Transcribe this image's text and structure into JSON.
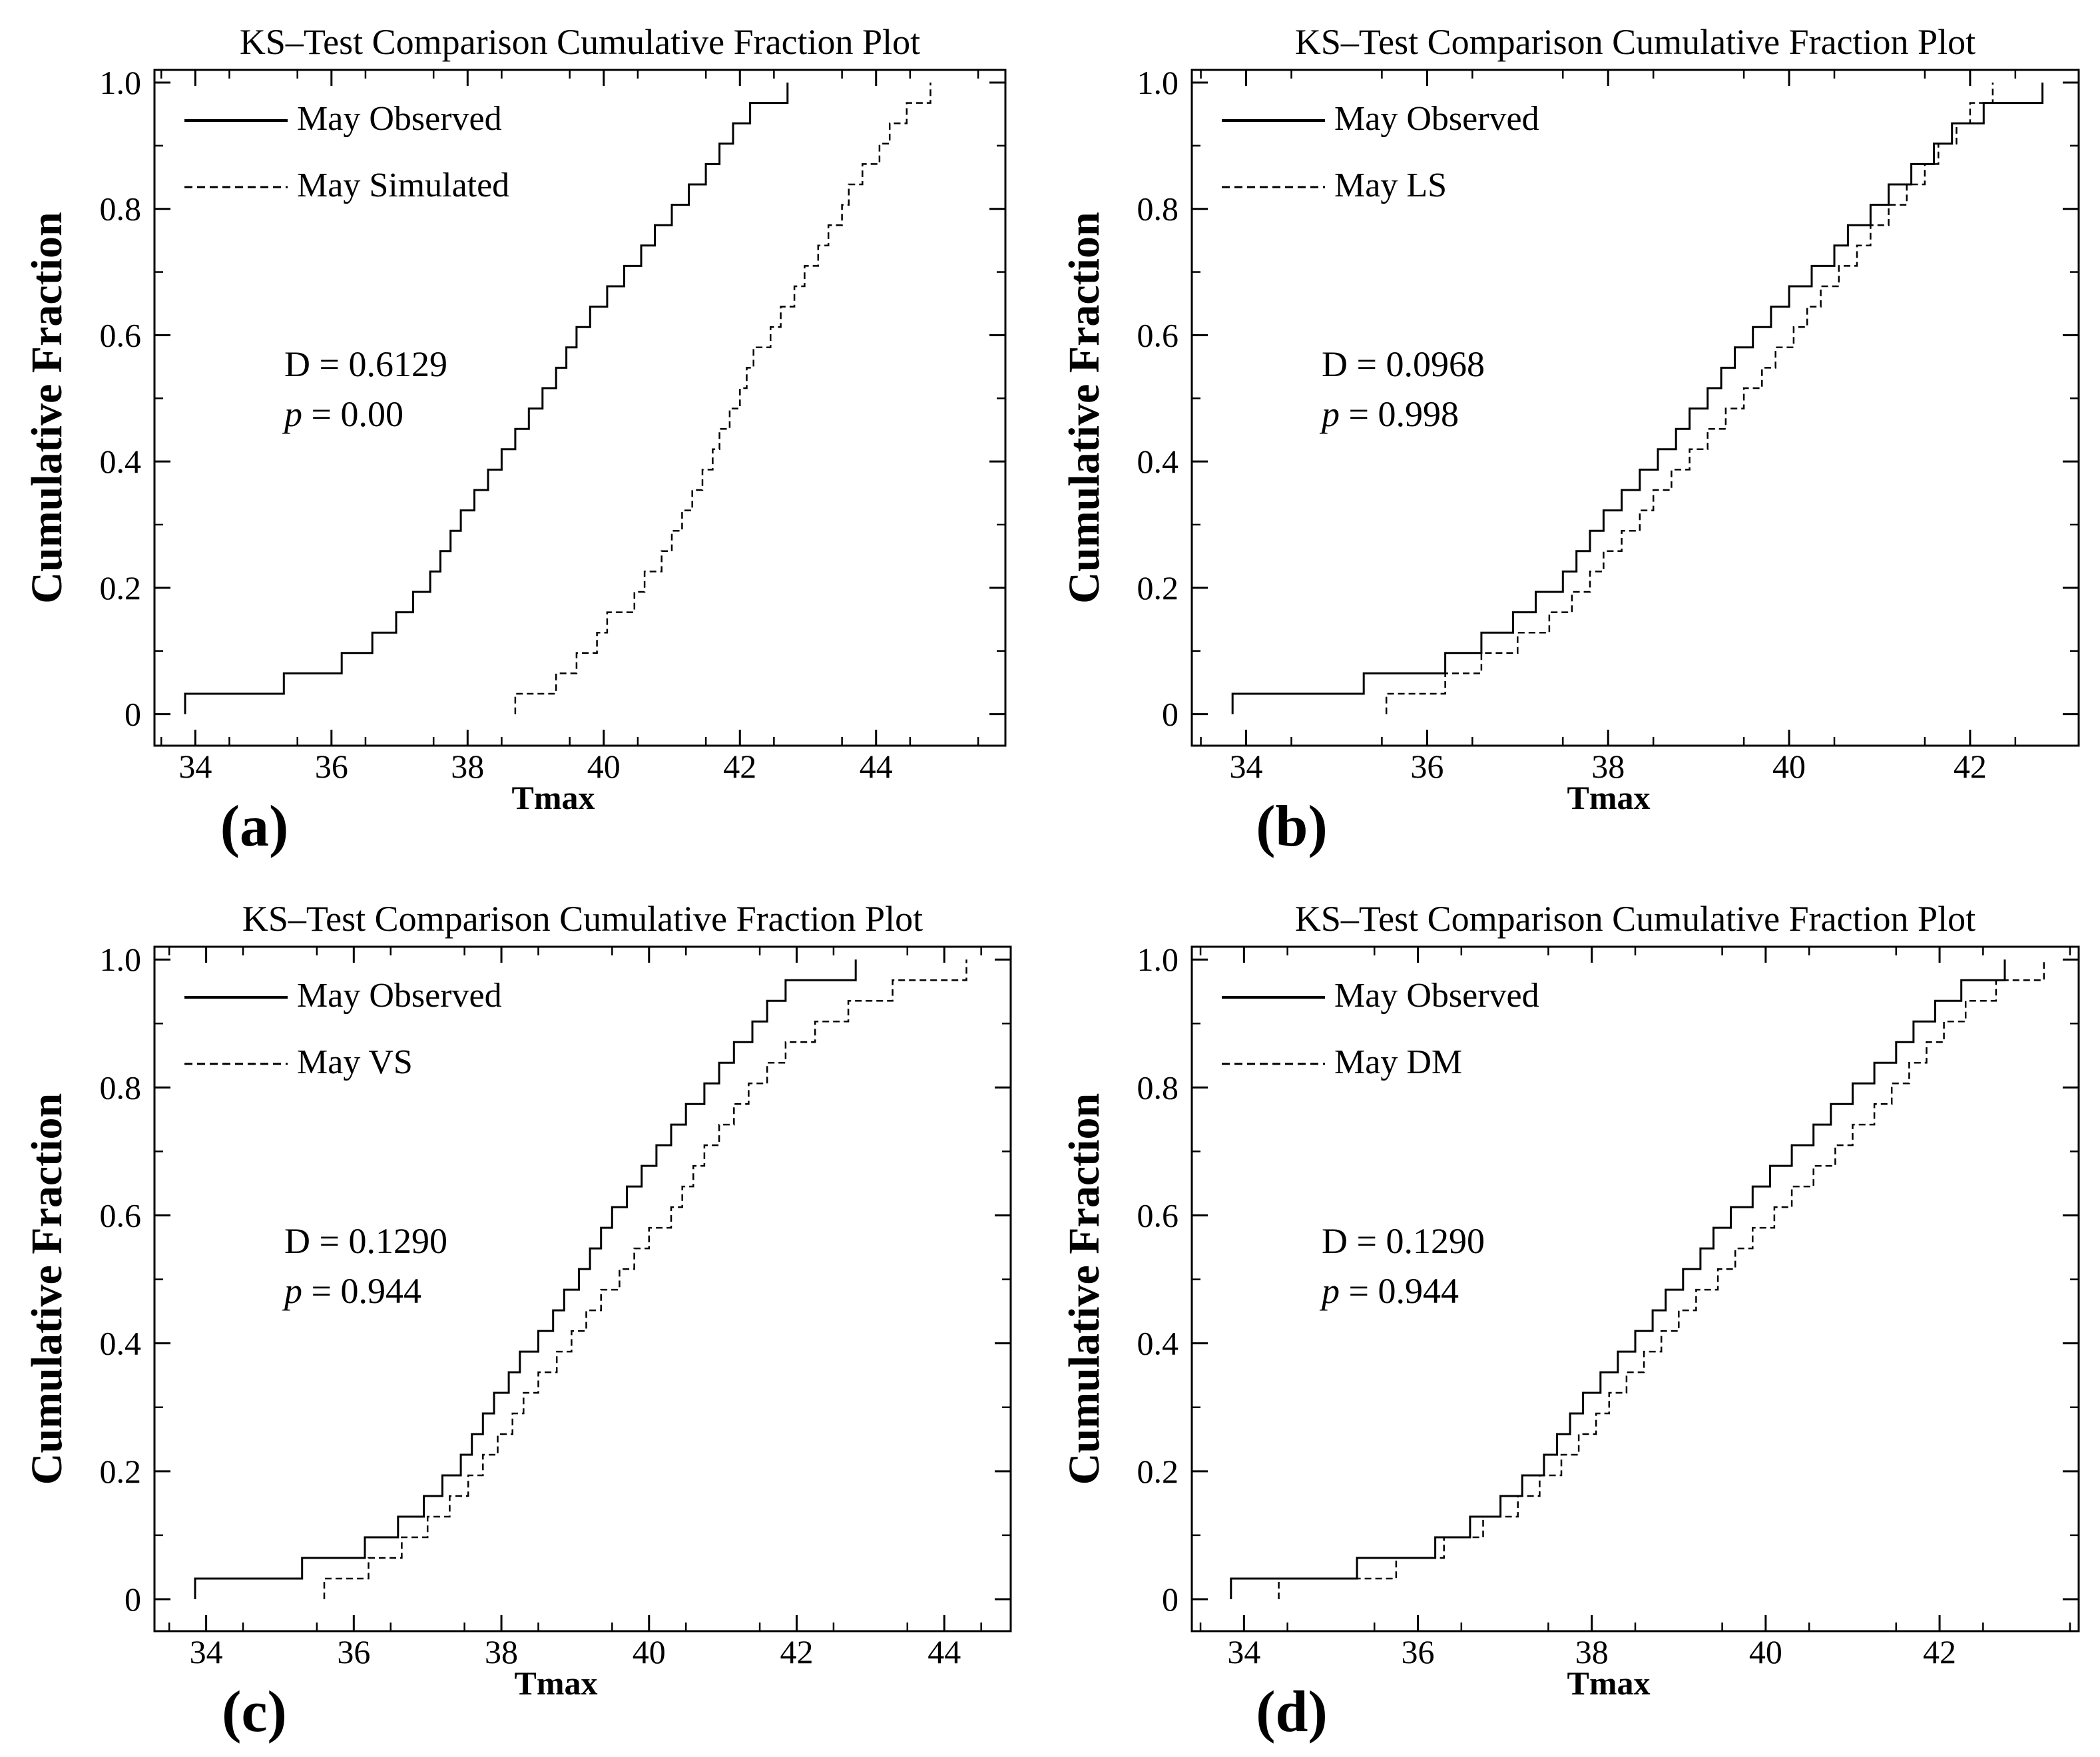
{
  "chart_data": [
    {
      "type": "line",
      "panel_label": "(a)",
      "title": "KS–Test Comparison Cumulative Fraction Plot",
      "xlabel": "Tmax",
      "ylabel": "Cumulative Fraction",
      "xlim": [
        33.4,
        45.9
      ],
      "ylim": [
        -0.05,
        1.02
      ],
      "xticks": [
        34,
        36,
        38,
        40,
        42,
        44
      ],
      "xtick_labels": [
        "34",
        "36",
        "38",
        "40",
        "42",
        "44"
      ],
      "yticks": [
        0,
        0.2,
        0.4,
        0.6,
        0.8,
        1.0
      ],
      "ytick_labels": [
        "0",
        "0.2",
        "0.4",
        "0.6",
        "0.8",
        "1.0"
      ],
      "statistic_d": "D = 0.6129",
      "statistic_p_symbol": "p",
      "statistic_p_value": " = 0.00",
      "series": [
        {
          "name": "May Observed",
          "style": "solid",
          "x": [
            33.85,
            35.3,
            36.15,
            36.6,
            36.95,
            37.2,
            37.45,
            37.6,
            37.75,
            37.9,
            38.1,
            38.3,
            38.5,
            38.7,
            38.9,
            39.1,
            39.3,
            39.45,
            39.6,
            39.8,
            40.05,
            40.3,
            40.55,
            40.75,
            41.0,
            41.25,
            41.5,
            41.7,
            41.9,
            42.15,
            42.7
          ]
        },
        {
          "name": "May Simulated",
          "style": "dashed",
          "x": [
            38.7,
            39.3,
            39.6,
            39.9,
            40.05,
            40.45,
            40.6,
            40.85,
            41.0,
            41.15,
            41.3,
            41.45,
            41.6,
            41.7,
            41.85,
            42.0,
            42.1,
            42.2,
            42.45,
            42.6,
            42.8,
            42.95,
            43.15,
            43.3,
            43.5,
            43.6,
            43.8,
            44.05,
            44.2,
            44.45,
            44.8
          ]
        }
      ]
    },
    {
      "type": "line",
      "panel_label": "(b)",
      "title": "KS–Test Comparison Cumulative Fraction Plot",
      "xlabel": "Tmax",
      "ylabel": "Cumulative Fraction",
      "xlim": [
        33.4,
        43.2
      ],
      "ylim": [
        -0.05,
        1.02
      ],
      "xticks": [
        34,
        36,
        38,
        40,
        42
      ],
      "xtick_labels": [
        "34",
        "36",
        "38",
        "40",
        "42"
      ],
      "yticks": [
        0,
        0.2,
        0.4,
        0.6,
        0.8,
        1.0
      ],
      "ytick_labels": [
        "0",
        "0.2",
        "0.4",
        "0.6",
        "0.8",
        "1.0"
      ],
      "statistic_d": "D = 0.0968",
      "statistic_p_symbol": "p",
      "statistic_p_value": " = 0.998",
      "series": [
        {
          "name": "May Observed",
          "style": "solid",
          "x": [
            33.85,
            35.3,
            36.2,
            36.6,
            36.95,
            37.2,
            37.5,
            37.65,
            37.8,
            37.95,
            38.15,
            38.35,
            38.55,
            38.75,
            38.9,
            39.1,
            39.25,
            39.4,
            39.6,
            39.8,
            40.0,
            40.25,
            40.5,
            40.65,
            40.9,
            41.1,
            41.35,
            41.6,
            41.8,
            42.15,
            42.8
          ]
        },
        {
          "name": "May LS",
          "style": "dashed",
          "x": [
            35.55,
            36.2,
            36.6,
            37.0,
            37.35,
            37.6,
            37.8,
            37.95,
            38.15,
            38.35,
            38.5,
            38.7,
            38.9,
            39.1,
            39.3,
            39.5,
            39.7,
            39.85,
            40.05,
            40.2,
            40.35,
            40.55,
            40.75,
            40.9,
            41.1,
            41.3,
            41.5,
            41.65,
            41.85,
            42.0,
            42.25
          ]
        }
      ]
    },
    {
      "type": "line",
      "panel_label": "(c)",
      "title": "KS–Test Comparison Cumulative Fraction Plot",
      "xlabel": "Tmax",
      "ylabel": "Cumulative Fraction",
      "xlim": [
        33.3,
        44.9
      ],
      "ylim": [
        -0.05,
        1.02
      ],
      "xticks": [
        34,
        36,
        38,
        40,
        42,
        44
      ],
      "xtick_labels": [
        "34",
        "36",
        "38",
        "40",
        "42",
        "44"
      ],
      "yticks": [
        0,
        0.2,
        0.4,
        0.6,
        0.8,
        1.0
      ],
      "ytick_labels": [
        "0",
        "0.2",
        "0.4",
        "0.6",
        "0.8",
        "1.0"
      ],
      "statistic_d": "D = 0.1290",
      "statistic_p_symbol": "p",
      "statistic_p_value": " = 0.944",
      "series": [
        {
          "name": "May Observed",
          "style": "solid",
          "x": [
            33.85,
            35.3,
            36.15,
            36.6,
            36.95,
            37.2,
            37.45,
            37.6,
            37.75,
            37.9,
            38.1,
            38.25,
            38.5,
            38.7,
            38.85,
            39.05,
            39.2,
            39.35,
            39.5,
            39.7,
            39.9,
            40.1,
            40.3,
            40.5,
            40.75,
            40.95,
            41.15,
            41.4,
            41.6,
            41.85,
            42.8
          ]
        },
        {
          "name": "May VS",
          "style": "dashed",
          "x": [
            35.6,
            36.2,
            36.65,
            37.0,
            37.3,
            37.55,
            37.75,
            37.95,
            38.15,
            38.3,
            38.5,
            38.75,
            38.95,
            39.15,
            39.35,
            39.6,
            39.8,
            40.0,
            40.3,
            40.45,
            40.6,
            40.75,
            40.95,
            41.15,
            41.35,
            41.6,
            41.85,
            42.25,
            42.7,
            43.3,
            44.3
          ]
        }
      ]
    },
    {
      "type": "line",
      "panel_label": "(d)",
      "title": "KS–Test Comparison Cumulative Fraction Plot",
      "xlabel": "Tmax",
      "ylabel": "Cumulative Fraction",
      "xlim": [
        33.4,
        43.6
      ],
      "ylim": [
        -0.05,
        1.02
      ],
      "xticks": [
        34,
        36,
        38,
        40,
        42
      ],
      "xtick_labels": [
        "34",
        "36",
        "38",
        "40",
        "42"
      ],
      "yticks": [
        0,
        0.2,
        0.4,
        0.6,
        0.8,
        1.0
      ],
      "ytick_labels": [
        "0",
        "0.2",
        "0.4",
        "0.6",
        "0.8",
        "1.0"
      ],
      "statistic_d": "D = 0.1290",
      "statistic_p_symbol": "p",
      "statistic_p_value": " = 0.944",
      "series": [
        {
          "name": "May Observed",
          "style": "solid",
          "x": [
            33.85,
            35.3,
            36.2,
            36.6,
            36.95,
            37.2,
            37.45,
            37.6,
            37.75,
            37.9,
            38.1,
            38.3,
            38.5,
            38.7,
            38.85,
            39.05,
            39.25,
            39.4,
            39.6,
            39.85,
            40.05,
            40.3,
            40.55,
            40.75,
            41.0,
            41.25,
            41.5,
            41.7,
            41.95,
            42.25,
            42.75
          ]
        },
        {
          "name": "May DM",
          "style": "dashed",
          "x": [
            34.4,
            35.75,
            36.3,
            36.75,
            37.15,
            37.4,
            37.65,
            37.85,
            38.05,
            38.2,
            38.4,
            38.6,
            38.8,
            39.0,
            39.2,
            39.45,
            39.65,
            39.85,
            40.1,
            40.3,
            40.55,
            40.8,
            41.0,
            41.25,
            41.45,
            41.65,
            41.85,
            42.05,
            42.3,
            42.65,
            43.2
          ]
        }
      ]
    }
  ]
}
